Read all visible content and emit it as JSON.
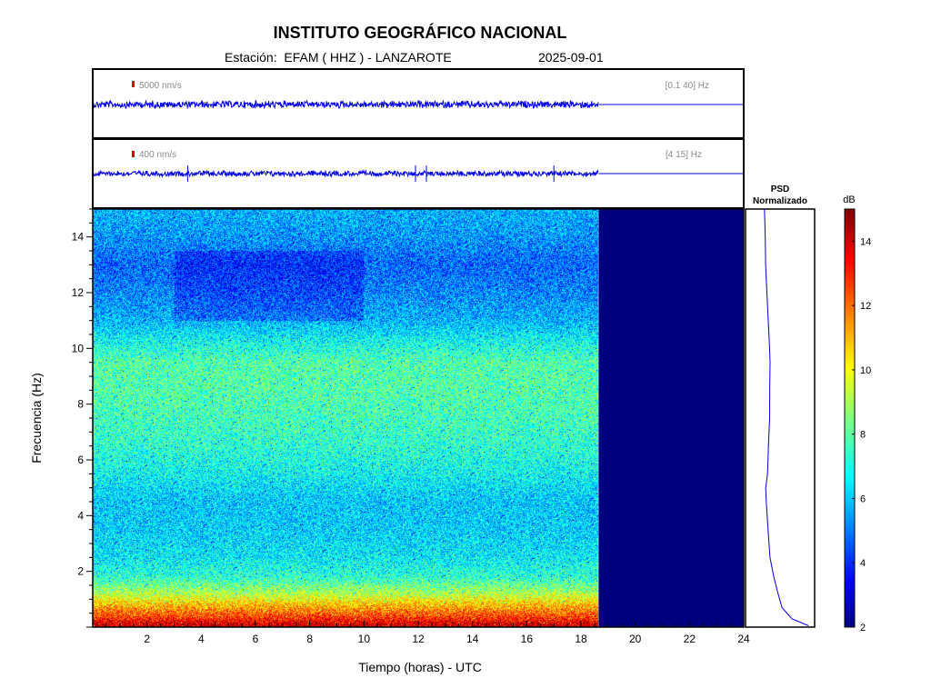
{
  "header": {
    "title": "INSTITUTO GEOGRÁFICO NACIONAL",
    "subtitle": "Estación:  EFAM ( HHZ ) - LANZAROTE",
    "date": "2025-09-01"
  },
  "colors": {
    "trace": "#0000e6",
    "no_data": "#00007f",
    "scale_marker": "#e00000"
  },
  "chart_data": [
    {
      "type": "line",
      "name": "seismogram-broadband",
      "scale_label": "5000 nm/s",
      "filter_label": "[0.1 40] Hz",
      "x_range": [
        0,
        24
      ],
      "data_end_hour": 18.65
    },
    {
      "type": "line",
      "name": "seismogram-filtered",
      "scale_label": "400 nm/s",
      "filter_label": "[4 15] Hz",
      "x_range": [
        0,
        24
      ],
      "data_end_hour": 18.65,
      "spikes_hours": [
        3.5,
        11.9,
        12.3,
        17.0
      ]
    },
    {
      "type": "heatmap",
      "xlabel": "Tiempo (horas) - UTC",
      "ylabel": "Frecuencia  (Hz)",
      "xlim": [
        0,
        24
      ],
      "ylim": [
        0,
        15
      ],
      "x_ticks": [
        "2",
        "4",
        "6",
        "8",
        "10",
        "12",
        "14",
        "16",
        "18",
        "20",
        "22",
        "24"
      ],
      "y_ticks": [
        "2",
        "4",
        "6",
        "8",
        "10",
        "12",
        "14"
      ],
      "data_end_hour": 18.65,
      "colorbar": {
        "label": "dB",
        "range": [
          2,
          15
        ],
        "ticks": [
          "2",
          "4",
          "6",
          "8",
          "10",
          "12",
          "14"
        ]
      },
      "frequency_profile_db": [
        {
          "f": 0.1,
          "db": 14
        },
        {
          "f": 0.4,
          "db": 12.5
        },
        {
          "f": 0.8,
          "db": 11
        },
        {
          "f": 1.2,
          "db": 9.2
        },
        {
          "f": 1.8,
          "db": 7.5
        },
        {
          "f": 2.5,
          "db": 6.8
        },
        {
          "f": 3.5,
          "db": 6.4
        },
        {
          "f": 4.5,
          "db": 6.3
        },
        {
          "f": 5.5,
          "db": 7.0
        },
        {
          "f": 6.5,
          "db": 7.5
        },
        {
          "f": 7.5,
          "db": 7.8
        },
        {
          "f": 8.5,
          "db": 8.0
        },
        {
          "f": 9.5,
          "db": 8.0
        },
        {
          "f": 10.3,
          "db": 7.0
        },
        {
          "f": 11,
          "db": 6.0
        },
        {
          "f": 12,
          "db": 5.4
        },
        {
          "f": 13,
          "db": 5.0
        },
        {
          "f": 14,
          "db": 5.6
        },
        {
          "f": 15,
          "db": 6.0
        }
      ]
    },
    {
      "type": "line",
      "name": "psd-normalizado",
      "title_line1": "PSD",
      "title_line2": "Normalizado",
      "ylim": [
        0,
        15
      ],
      "xlim": [
        0,
        1
      ],
      "points": [
        {
          "f": 0.05,
          "v": 0.95
        },
        {
          "f": 0.3,
          "v": 0.6
        },
        {
          "f": 0.7,
          "v": 0.38
        },
        {
          "f": 1.2,
          "v": 0.3
        },
        {
          "f": 1.8,
          "v": 0.22
        },
        {
          "f": 2.5,
          "v": 0.14
        },
        {
          "f": 3.5,
          "v": 0.09
        },
        {
          "f": 4.5,
          "v": 0.06
        },
        {
          "f": 5.0,
          "v": 0.05
        },
        {
          "f": 5.5,
          "v": 0.08
        },
        {
          "f": 6.5,
          "v": 0.1
        },
        {
          "f": 7.5,
          "v": 0.12
        },
        {
          "f": 8.5,
          "v": 0.13
        },
        {
          "f": 9.5,
          "v": 0.14
        },
        {
          "f": 10.2,
          "v": 0.12
        },
        {
          "f": 11,
          "v": 0.09
        },
        {
          "f": 12,
          "v": 0.07
        },
        {
          "f": 13,
          "v": 0.04
        },
        {
          "f": 14,
          "v": 0.03
        },
        {
          "f": 15,
          "v": 0.02
        }
      ]
    }
  ]
}
